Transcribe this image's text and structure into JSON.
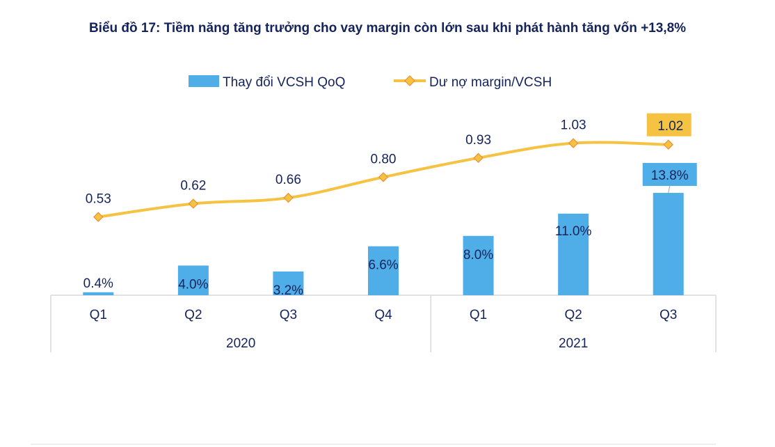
{
  "chart_data": {
    "type": "bar+line",
    "title": "Biểu đồ 17: Tiềm năng tăng trưởng cho vay margin còn lớn sau khi phát hành tăng vốn +13,8%",
    "categories": [
      "Q1",
      "Q2",
      "Q3",
      "Q4",
      "Q1",
      "Q2",
      "Q3"
    ],
    "groups": [
      {
        "label": "2020",
        "count": 4
      },
      {
        "label": "2021",
        "count": 3
      }
    ],
    "series": [
      {
        "name": "Thay đổi VCSH QoQ",
        "type": "bar",
        "axis": "primary",
        "values": [
          0.4,
          4.0,
          3.2,
          6.6,
          8.0,
          11.0,
          13.8
        ],
        "labels": [
          "0.4%",
          "4.0%",
          "3.2%",
          "6.6%",
          "8.0%",
          "11.0%",
          "13.8%"
        ],
        "color": "#4faee8"
      },
      {
        "name": "Dư nợ margin/VCSH",
        "type": "line",
        "axis": "secondary",
        "values": [
          0.53,
          0.62,
          0.66,
          0.8,
          0.93,
          1.03,
          1.02
        ],
        "labels": [
          "0.53",
          "0.62",
          "0.66",
          "0.80",
          "0.93",
          "1.03",
          "1.02"
        ],
        "color": "#f5c242",
        "marker_color": "#e8903a"
      }
    ],
    "highlighted_labels": {
      "bar": "13.8%",
      "line": "1.02"
    },
    "legend_position": "top",
    "grid": false,
    "text_color": "#14235a"
  }
}
